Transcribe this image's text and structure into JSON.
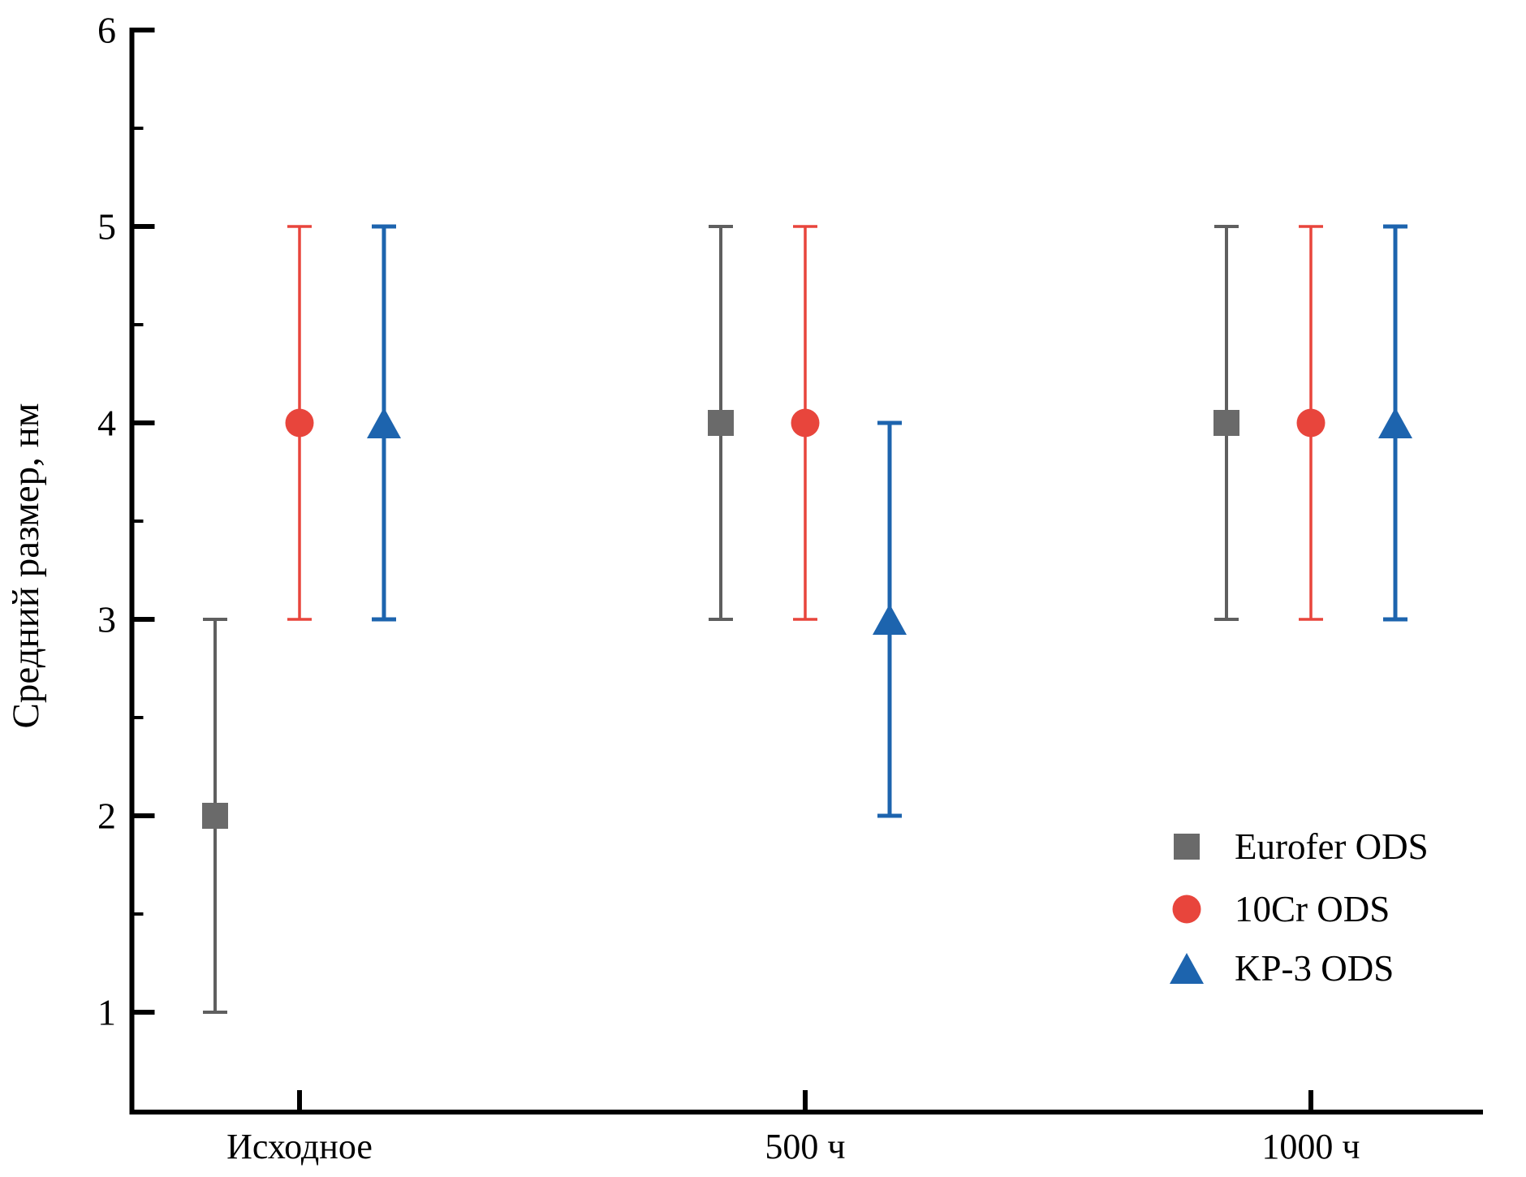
{
  "figure": {
    "background": "#ffffff",
    "axis_color": "#000000"
  },
  "chart_data": {
    "type": "scatter",
    "title": "",
    "xlabel": "",
    "ylabel": "Средний размер, нм",
    "ylim": [
      0.5,
      6
    ],
    "yticks": [
      6,
      5,
      4,
      3,
      2,
      1
    ],
    "y_minor_ticks": [
      5.5,
      4.5,
      3.5,
      2.5,
      1.5
    ],
    "grid": "off",
    "legend_position": "lower right",
    "categories": [
      "Исходное",
      "500 ч",
      "1000 ч"
    ],
    "series": [
      {
        "name": "Eurofer ODS",
        "marker": "square",
        "color": "#6a6a6a",
        "bar_color": "#5f5f5f",
        "values": [
          2,
          4,
          4
        ],
        "err_low": [
          1,
          3,
          3
        ],
        "err_high": [
          3,
          5,
          5
        ]
      },
      {
        "name": "10Cr ODS",
        "marker": "circle",
        "color": "#e8453c",
        "bar_color": "#e8453c",
        "values": [
          4,
          4,
          4
        ],
        "err_low": [
          3,
          3,
          3
        ],
        "err_high": [
          5,
          5,
          5
        ]
      },
      {
        "name": "KP-3 ODS",
        "marker": "triangle",
        "color": "#1d64ae",
        "bar_color": "#1d64ae",
        "values": [
          4,
          3,
          4
        ],
        "err_low": [
          3,
          2,
          3
        ],
        "err_high": [
          5,
          4,
          5
        ]
      }
    ]
  }
}
